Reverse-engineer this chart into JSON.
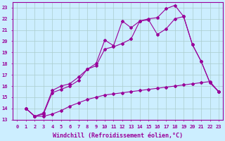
{
  "xlabel": "Windchill (Refroidissement éolien,°C)",
  "background_color": "#cceeff",
  "grid_color": "#aacccc",
  "line_color": "#990099",
  "xlim": [
    -0.5,
    23.5
  ],
  "ylim": [
    13,
    23.5
  ],
  "xticks": [
    0,
    1,
    2,
    3,
    4,
    5,
    6,
    7,
    8,
    9,
    10,
    11,
    12,
    13,
    14,
    15,
    16,
    17,
    18,
    19,
    20,
    21,
    22,
    23
  ],
  "yticks": [
    13,
    14,
    15,
    16,
    17,
    18,
    19,
    20,
    21,
    22,
    23
  ],
  "line1_x": [
    1,
    2,
    3,
    4,
    5,
    6,
    7,
    8,
    9,
    10,
    11,
    12,
    13,
    14,
    15,
    16,
    17,
    18,
    19,
    20,
    21,
    22,
    23
  ],
  "line1_y": [
    14.0,
    13.3,
    13.3,
    13.5,
    13.8,
    14.2,
    14.5,
    14.8,
    15.0,
    15.2,
    15.3,
    15.4,
    15.5,
    15.6,
    15.7,
    15.8,
    15.9,
    16.0,
    16.1,
    16.2,
    16.3,
    16.4,
    15.5
  ],
  "line2_x": [
    1,
    2,
    3,
    4,
    5,
    6,
    7,
    8,
    9,
    10,
    11,
    12,
    13,
    14,
    15,
    16,
    17,
    18,
    19,
    20,
    21,
    22,
    23
  ],
  "line2_y": [
    14.0,
    13.3,
    13.5,
    15.4,
    15.7,
    16.0,
    16.5,
    17.5,
    17.8,
    19.3,
    19.5,
    19.8,
    20.2,
    21.8,
    21.9,
    20.6,
    21.1,
    22.0,
    22.2,
    19.7,
    18.2,
    16.3,
    15.5
  ],
  "line3_x": [
    1,
    2,
    3,
    4,
    5,
    6,
    7,
    8,
    9,
    10,
    11,
    12,
    13,
    14,
    15,
    16,
    17,
    18,
    19,
    20,
    21,
    22,
    23
  ],
  "line3_y": [
    14.0,
    13.3,
    13.6,
    15.6,
    16.0,
    16.2,
    16.8,
    17.5,
    18.0,
    20.1,
    19.6,
    21.8,
    21.2,
    21.8,
    22.0,
    22.1,
    22.9,
    23.2,
    22.2,
    19.7,
    18.2,
    16.3,
    15.5
  ],
  "marker": "D",
  "markersize": 2.0,
  "linewidth": 0.8,
  "tick_fontsize": 5.0,
  "xlabel_fontsize": 6.0
}
